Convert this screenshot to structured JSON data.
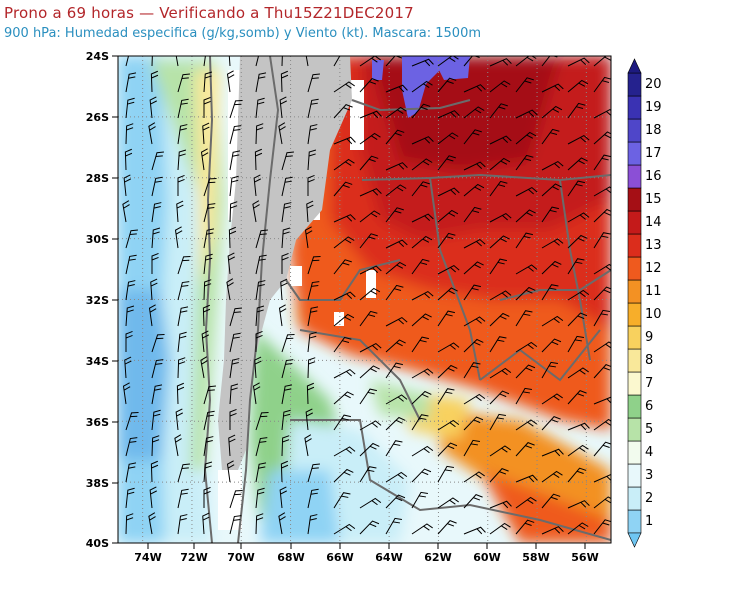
{
  "header": {
    "title": "Prono a 69 horas — Verificando a Thu15Z21DEC2017",
    "subtitle": "900 hPa: Humedad especifica (g/kg,somb) y Viento (kt). Mascara: 1500m"
  },
  "map": {
    "lat_range": [
      -40,
      -24
    ],
    "lon_range": [
      -75,
      -55
    ],
    "lat_ticks": [
      {
        "value": -24,
        "label": "24S"
      },
      {
        "value": -26,
        "label": "26S"
      },
      {
        "value": -28,
        "label": "28S"
      },
      {
        "value": -30,
        "label": "30S"
      },
      {
        "value": -32,
        "label": "32S"
      },
      {
        "value": -34,
        "label": "34S"
      },
      {
        "value": -36,
        "label": "36S"
      },
      {
        "value": -38,
        "label": "38S"
      },
      {
        "value": -40,
        "label": "40S"
      }
    ],
    "lon_ticks": [
      {
        "value": -74,
        "label": "74W"
      },
      {
        "value": -72,
        "label": "72W"
      },
      {
        "value": -70,
        "label": "70W"
      },
      {
        "value": -68,
        "label": "68W"
      },
      {
        "value": -66,
        "label": "66W"
      },
      {
        "value": -64,
        "label": "64W"
      },
      {
        "value": -62,
        "label": "62W"
      },
      {
        "value": -60,
        "label": "60W"
      },
      {
        "value": -58,
        "label": "58W"
      },
      {
        "value": -56,
        "label": "56W"
      }
    ],
    "mask_color": "#c4c4c4",
    "gridlines": "dotted"
  },
  "colorbar": {
    "labels": [
      "1",
      "2",
      "3",
      "4",
      "5",
      "6",
      "7",
      "8",
      "9",
      "10",
      "11",
      "12",
      "13",
      "14",
      "15",
      "16",
      "17",
      "18",
      "19",
      "20"
    ],
    "colors": [
      "#8fd3f4",
      "#c9eef8",
      "#e8f8fb",
      "#f2fbee",
      "#b7e3a8",
      "#8fd18a",
      "#fbf8cf",
      "#f9e89a",
      "#f8d15e",
      "#f7ae2a",
      "#f39123",
      "#ef5a1e",
      "#db2d1c",
      "#c41a1a",
      "#a50f15",
      "#8b4fd6",
      "#6c62e3",
      "#4f46c9",
      "#3a32b3",
      "#25228e"
    ]
  }
}
